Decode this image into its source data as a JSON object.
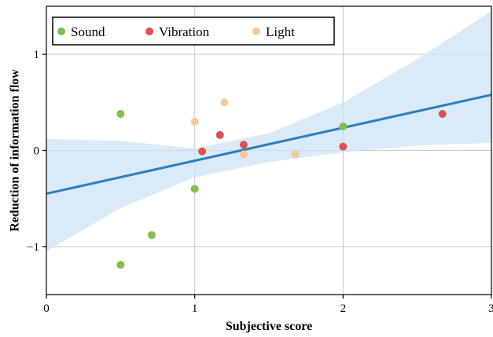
{
  "chart_data": {
    "type": "scatter",
    "xlabel": "Subjective score",
    "ylabel": "Reduction of information flow",
    "xlim": [
      0,
      3
    ],
    "ylim": [
      -1.5,
      1.5
    ],
    "xticks": [
      0,
      1,
      2,
      3
    ],
    "yticks": [
      -1,
      0,
      1
    ],
    "ytick_labels": [
      "−1",
      "0",
      "1"
    ],
    "grid": true,
    "legend_position": "top-left",
    "series": [
      {
        "name": "Sound",
        "color": "#7dc24b",
        "points": [
          [
            0.5,
            0.38
          ],
          [
            0.5,
            -1.19
          ],
          [
            0.71,
            -0.88
          ],
          [
            1.0,
            -0.4
          ],
          [
            2.0,
            0.25
          ]
        ]
      },
      {
        "name": "Vibration",
        "color": "#e15050",
        "points": [
          [
            1.05,
            -0.01
          ],
          [
            1.17,
            0.16
          ],
          [
            1.33,
            0.06
          ],
          [
            2.0,
            0.04
          ],
          [
            2.67,
            0.38
          ]
        ]
      },
      {
        "name": "Light",
        "color": "#f7c89b",
        "points": [
          [
            1.0,
            0.3
          ],
          [
            1.2,
            0.5
          ],
          [
            1.33,
            -0.04
          ],
          [
            1.68,
            -0.04
          ]
        ]
      }
    ],
    "regression": {
      "color": "#2b7fc0",
      "band_color": "#cfe3f5",
      "intercept": -0.45,
      "slope": 0.343,
      "band_upper": [
        [
          0,
          0.12
        ],
        [
          0.5,
          0.1
        ],
        [
          1.0,
          0.02
        ],
        [
          1.5,
          0.18
        ],
        [
          2.0,
          0.5
        ],
        [
          2.5,
          0.95
        ],
        [
          3.0,
          1.45
        ]
      ],
      "band_lower": [
        [
          0,
          -1.05
        ],
        [
          0.5,
          -0.6
        ],
        [
          1.0,
          -0.28
        ],
        [
          1.5,
          -0.12
        ],
        [
          2.0,
          -0.02
        ],
        [
          2.5,
          0.05
        ],
        [
          3.0,
          0.08
        ]
      ]
    }
  }
}
